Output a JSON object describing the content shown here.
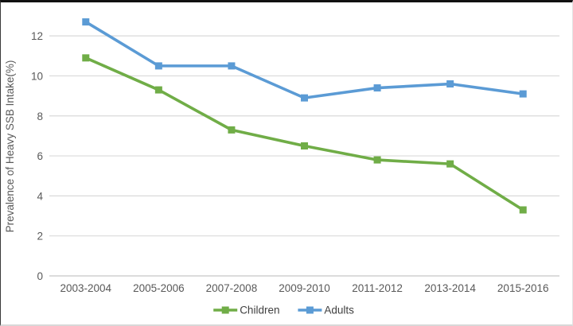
{
  "chart_data": {
    "type": "line",
    "title": "",
    "xlabel": "",
    "ylabel": "Prevalence of Heavy SSB Intake(%)",
    "categories": [
      "2003-2004",
      "2005-2006",
      "2007-2008",
      "2009-2010",
      "2011-2012",
      "2013-2014",
      "2015-2016"
    ],
    "series": [
      {
        "name": "Children",
        "color": "#70AD47",
        "values": [
          10.9,
          9.3,
          7.3,
          6.5,
          5.8,
          5.6,
          3.3
        ]
      },
      {
        "name": "Adults",
        "color": "#5B9BD5",
        "values": [
          12.7,
          10.5,
          10.5,
          8.9,
          9.4,
          9.6,
          9.1
        ]
      }
    ],
    "ylim": [
      0,
      13
    ],
    "yticks": [
      0,
      2,
      4,
      6,
      8,
      10,
      12
    ],
    "grid": true,
    "legend_position": "bottom",
    "marker": "square"
  },
  "colors": {
    "background": "#FFFFFF",
    "gridline": "#D9D9D9",
    "axis_line": "#C6C6C6",
    "tick_text": "#595959",
    "axis_title_text": "#595959",
    "legend_text": "#404040"
  }
}
